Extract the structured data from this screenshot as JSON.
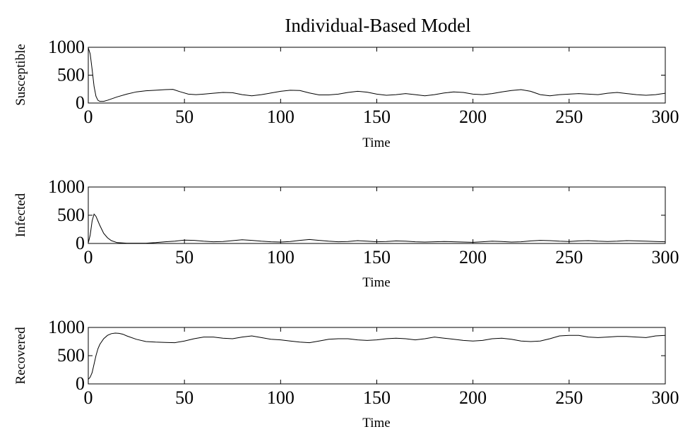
{
  "title": "Individual-Based Model",
  "chart_data": [
    {
      "type": "line",
      "ylabel": "Susceptible",
      "xlabel": "Time",
      "xlim": [
        0,
        300
      ],
      "ylim": [
        0,
        1000
      ],
      "xticks": [
        0,
        50,
        100,
        150,
        200,
        250,
        300
      ],
      "yticks": [
        0,
        500,
        1000
      ],
      "grid": false,
      "x": [
        0,
        1,
        2,
        3,
        4,
        5,
        6,
        8,
        10,
        15,
        20,
        25,
        30,
        35,
        40,
        44,
        48,
        52,
        56,
        60,
        65,
        70,
        75,
        80,
        85,
        90,
        95,
        100,
        105,
        110,
        115,
        120,
        125,
        130,
        135,
        140,
        145,
        150,
        155,
        160,
        165,
        170,
        175,
        180,
        185,
        190,
        195,
        200,
        205,
        210,
        215,
        220,
        225,
        230,
        235,
        240,
        245,
        250,
        255,
        260,
        265,
        270,
        275,
        280,
        285,
        290,
        295,
        300
      ],
      "y": [
        990,
        880,
        600,
        300,
        120,
        50,
        30,
        30,
        50,
        110,
        160,
        200,
        220,
        230,
        240,
        245,
        200,
        160,
        150,
        160,
        175,
        190,
        185,
        150,
        130,
        150,
        180,
        210,
        230,
        225,
        180,
        145,
        145,
        160,
        190,
        210,
        195,
        160,
        140,
        150,
        170,
        150,
        130,
        150,
        180,
        200,
        190,
        160,
        150,
        170,
        200,
        225,
        240,
        210,
        150,
        130,
        150,
        160,
        170,
        160,
        150,
        175,
        190,
        170,
        150,
        140,
        150,
        175
      ]
    },
    {
      "type": "line",
      "ylabel": "Infected",
      "xlabel": "Time",
      "xlim": [
        0,
        300
      ],
      "ylim": [
        0,
        1000
      ],
      "xticks": [
        0,
        50,
        100,
        150,
        200,
        250,
        300
      ],
      "yticks": [
        0,
        500,
        1000
      ],
      "grid": false,
      "x": [
        0,
        1,
        2,
        3,
        4,
        5,
        6,
        7,
        8,
        10,
        12,
        15,
        20,
        25,
        30,
        35,
        40,
        45,
        50,
        55,
        60,
        65,
        70,
        75,
        80,
        85,
        90,
        95,
        100,
        105,
        110,
        115,
        120,
        125,
        130,
        135,
        140,
        145,
        150,
        155,
        160,
        165,
        170,
        175,
        180,
        185,
        190,
        195,
        200,
        205,
        210,
        215,
        220,
        225,
        230,
        235,
        240,
        245,
        250,
        255,
        260,
        265,
        270,
        275,
        280,
        285,
        290,
        295,
        300
      ],
      "y": [
        10,
        150,
        400,
        520,
        480,
        400,
        320,
        250,
        180,
        100,
        50,
        15,
        5,
        5,
        5,
        15,
        30,
        40,
        60,
        55,
        40,
        30,
        35,
        50,
        65,
        55,
        40,
        30,
        25,
        35,
        55,
        70,
        55,
        40,
        30,
        35,
        50,
        40,
        30,
        35,
        45,
        40,
        30,
        25,
        30,
        35,
        30,
        25,
        20,
        30,
        40,
        35,
        25,
        30,
        45,
        55,
        50,
        40,
        35,
        45,
        50,
        40,
        35,
        40,
        50,
        45,
        40,
        35,
        30
      ]
    },
    {
      "type": "line",
      "ylabel": "Recovered",
      "xlabel": "Time",
      "xlim": [
        0,
        300
      ],
      "ylim": [
        0,
        1000
      ],
      "xticks": [
        0,
        50,
        100,
        150,
        200,
        250,
        300
      ],
      "yticks": [
        0,
        500,
        1000
      ],
      "grid": false,
      "x": [
        0,
        1,
        2,
        3,
        4,
        5,
        6,
        8,
        10,
        12,
        14,
        16,
        18,
        20,
        25,
        30,
        35,
        40,
        45,
        50,
        55,
        60,
        65,
        70,
        75,
        80,
        85,
        90,
        95,
        100,
        105,
        110,
        115,
        120,
        125,
        130,
        135,
        140,
        145,
        150,
        155,
        160,
        165,
        170,
        175,
        180,
        185,
        190,
        195,
        200,
        205,
        210,
        215,
        220,
        225,
        230,
        235,
        240,
        245,
        250,
        255,
        260,
        265,
        270,
        275,
        280,
        285,
        290,
        295,
        300
      ],
      "y": [
        80,
        120,
        200,
        350,
        500,
        620,
        700,
        800,
        860,
        890,
        900,
        895,
        880,
        850,
        790,
        750,
        740,
        735,
        730,
        760,
        800,
        830,
        830,
        810,
        800,
        830,
        850,
        820,
        790,
        780,
        760,
        740,
        730,
        760,
        790,
        800,
        800,
        780,
        770,
        780,
        800,
        810,
        800,
        780,
        800,
        830,
        810,
        790,
        770,
        760,
        770,
        800,
        810,
        790,
        760,
        750,
        760,
        800,
        850,
        860,
        860,
        830,
        820,
        830,
        840,
        840,
        830,
        820,
        850,
        860
      ]
    }
  ]
}
